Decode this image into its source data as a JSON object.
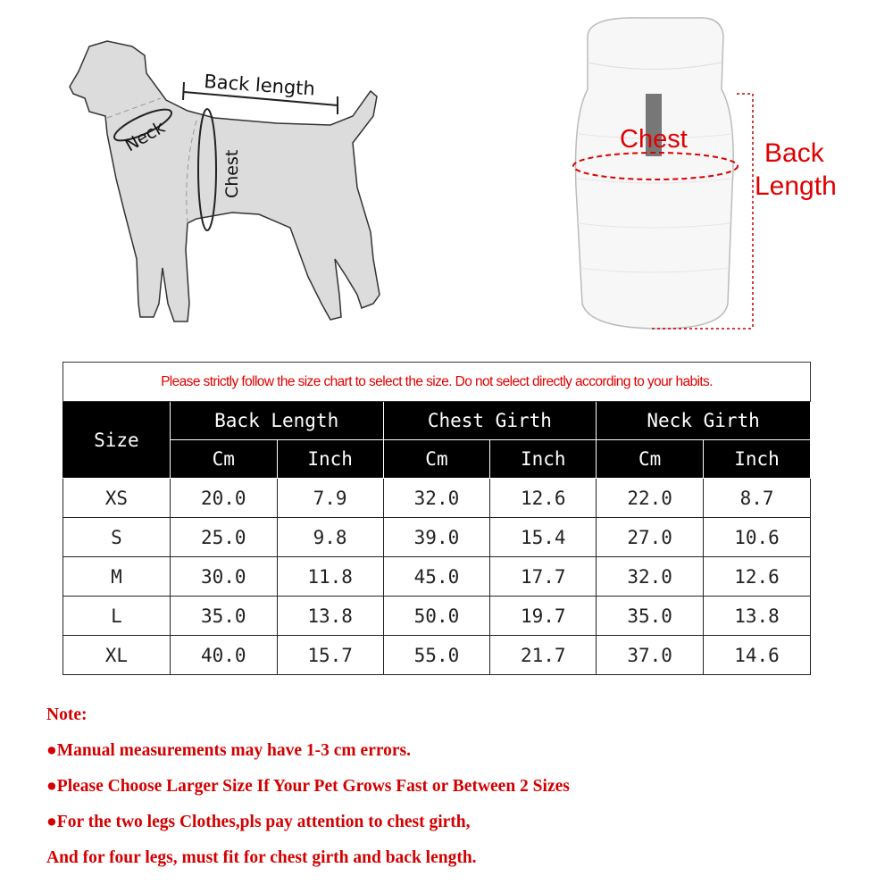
{
  "diagram": {
    "dog_labels": {
      "back_length": "Back length",
      "neck": "Neck",
      "chest": "Chest"
    },
    "vest_labels": {
      "chest": "Chest",
      "back_length_line1": "Back",
      "back_length_line2": "Length"
    }
  },
  "table": {
    "caption": "Please strictly follow the size chart to select the size. Do not select directly according to your habits.",
    "size_header": "Size",
    "groups": [
      "Back Length",
      "Chest Girth",
      "Neck Girth"
    ],
    "units": [
      "Cm",
      "Inch",
      "Cm",
      "Inch",
      "Cm",
      "Inch"
    ],
    "rows": [
      [
        "XS",
        "20.0",
        "7.9",
        "32.0",
        "12.6",
        "22.0",
        "8.7"
      ],
      [
        "S",
        "25.0",
        "9.8",
        "39.0",
        "15.4",
        "27.0",
        "10.6"
      ],
      [
        "M",
        "30.0",
        "11.8",
        "45.0",
        "17.7",
        "32.0",
        "12.6"
      ],
      [
        "L",
        "35.0",
        "13.8",
        "50.0",
        "19.7",
        "35.0",
        "13.8"
      ],
      [
        "XL",
        "40.0",
        "15.7",
        "55.0",
        "21.7",
        "37.0",
        "14.6"
      ]
    ]
  },
  "notes": {
    "title": "Note:",
    "items": [
      "●Manual measurements may have 1-3 cm errors.",
      "●Please Choose Larger Size If Your Pet Grows Fast or Between 2 Sizes",
      "●For the two legs Clothes,pls pay attention to chest girth,",
      "And for four legs, must fit for chest girth and back length."
    ]
  },
  "colors": {
    "accent_red": "#e00000",
    "header_bg": "#000000",
    "dog_fill": "#dcdcdc"
  }
}
